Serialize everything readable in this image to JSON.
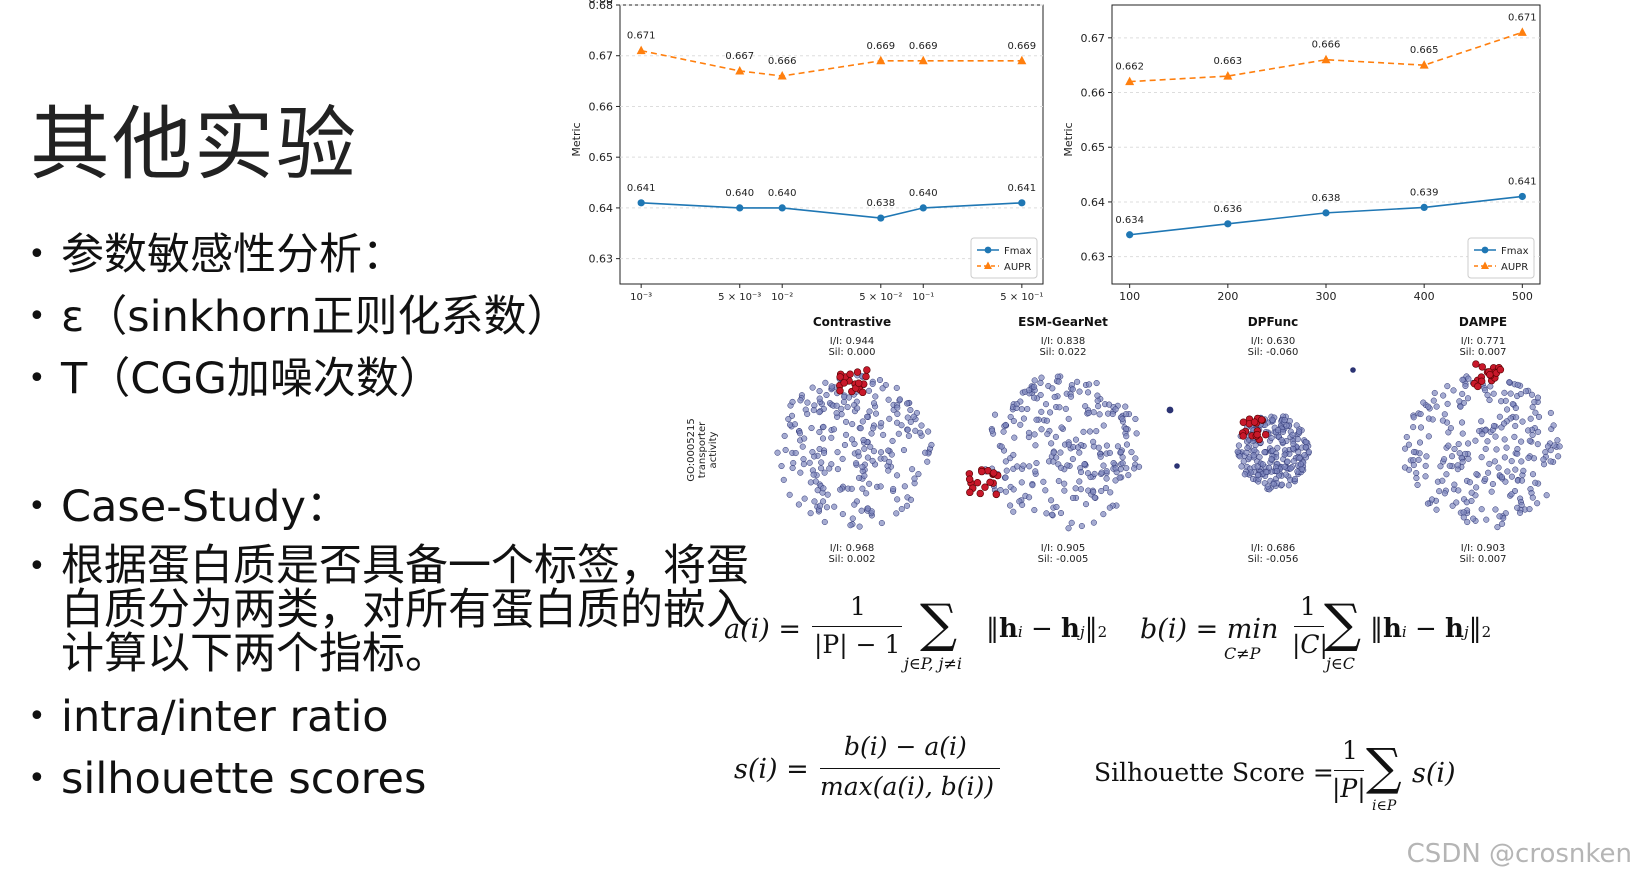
{
  "slide": {
    "title": "其他实验",
    "bullets": [
      "参数敏感性分析：",
      "ε（sinkhorn正则化系数）",
      "T（CGG加噪次数）",
      "Case-Study：",
      "根据蛋白质是否具备一个标签，将蛋白质分为两类，对所有蛋白质的嵌入计算以下两个指标。",
      "intra/inter ratio",
      "silhouette scores"
    ]
  },
  "chart_data": [
    {
      "type": "line",
      "title": "",
      "xlabel": "",
      "ylabel": "Metric",
      "x_ticks": [
        "10⁻³",
        "5 × 10⁻³",
        "10⁻²",
        "5 × 10⁻²",
        "10⁻¹",
        "5 × 10⁻¹"
      ],
      "x": [
        0.001,
        0.005,
        0.01,
        0.05,
        0.1,
        0.5
      ],
      "x_scale": "log",
      "ylim": [
        0.625,
        0.68
      ],
      "y_ticks": [
        "0.63",
        "0.64",
        "0.65",
        "0.66",
        "0.67",
        "0.68"
      ],
      "grid": true,
      "legend": "bottom-right",
      "series": [
        {
          "name": "Fmax",
          "color": "#1f77b4",
          "marker": "circle",
          "style": "solid",
          "values": [
            0.641,
            0.64,
            0.64,
            0.638,
            0.64,
            0.641
          ],
          "labels": [
            "0.641",
            "0.640",
            "0.640",
            "0.638",
            "0.640",
            "0.641"
          ]
        },
        {
          "name": "AUPR",
          "color": "#ff7f0e",
          "marker": "triangle",
          "style": "dashed",
          "values": [
            0.671,
            0.667,
            0.666,
            0.669,
            0.669,
            0.669
          ],
          "labels": [
            "0.671",
            "0.667",
            "0.666",
            "0.669",
            "0.669",
            "0.669"
          ]
        }
      ]
    },
    {
      "type": "line",
      "title": "",
      "xlabel": "",
      "ylabel": "Metric",
      "x_ticks": [
        "100",
        "200",
        "300",
        "400",
        "500"
      ],
      "x": [
        100,
        200,
        300,
        400,
        500
      ],
      "ylim": [
        0.625,
        0.676
      ],
      "y_ticks": [
        "0.63",
        "0.64",
        "0.65",
        "0.66",
        "0.67"
      ],
      "grid": true,
      "legend": "bottom-right",
      "series": [
        {
          "name": "Fmax",
          "color": "#1f77b4",
          "marker": "circle",
          "style": "solid",
          "values": [
            0.634,
            0.636,
            0.638,
            0.639,
            0.641
          ],
          "labels": [
            "0.634",
            "0.636",
            "0.638",
            "0.639",
            "0.641"
          ]
        },
        {
          "name": "AUPR",
          "color": "#ff7f0e",
          "marker": "triangle",
          "style": "dashed",
          "values": [
            0.662,
            0.663,
            0.666,
            0.665,
            0.671
          ],
          "labels": [
            "0.662",
            "0.663",
            "0.666",
            "0.665",
            "0.671"
          ]
        }
      ]
    },
    {
      "type": "scatter",
      "row_label": "GO:0005215\ntransporter\nactivity",
      "panels": [
        {
          "title": "Contrastive",
          "top_stats": [
            "I/I: 0.944",
            "Sil: 0.000"
          ],
          "bottom_stats": [
            "I/I: 0.968",
            "Sil: 0.002"
          ],
          "shape": "round"
        },
        {
          "title": "ESM-GearNet",
          "top_stats": [
            "I/I: 0.838",
            "Sil: 0.022"
          ],
          "bottom_stats": [
            "I/I: 0.905",
            "Sil: -0.005"
          ],
          "shape": "split"
        },
        {
          "title": "DPFunc",
          "top_stats": [
            "I/I: 0.630",
            "Sil: -0.060"
          ],
          "bottom_stats": [
            "I/I: 0.686",
            "Sil: -0.056"
          ],
          "shape": "dense"
        },
        {
          "title": "DAMPE",
          "top_stats": [
            "I/I: 0.771",
            "Sil: 0.007"
          ],
          "bottom_stats": [
            "I/I: 0.903",
            "Sil: 0.007"
          ],
          "shape": "round"
        }
      ]
    }
  ],
  "formulas": {
    "a_lhs": "a(i) =",
    "a_num": "1",
    "a_den": "|P| − 1",
    "a_sum_sub": "j∈P, j≠i",
    "a_norm": "‖h",
    "b_lhs": "b(i) = min",
    "b_min_sub": "C≠P",
    "b_num": "1",
    "b_den": "|C|",
    "b_sum_sub": "j∈C",
    "s_lhs": "s(i) =",
    "s_num": "b(i) − a(i)",
    "s_den": "max(a(i), b(i))",
    "sil_lhs": "Silhouette Score =",
    "sil_num": "1",
    "sil_den": "|P|",
    "sil_sum_sub": "i∈P",
    "sil_rhs": "s(i)"
  },
  "watermark": "CSDN @crosnken"
}
